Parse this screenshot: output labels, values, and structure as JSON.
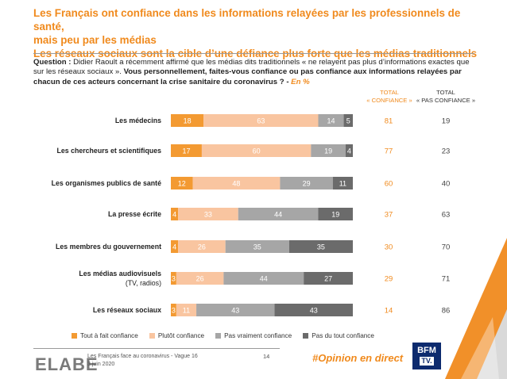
{
  "header": {
    "title_line1": "Les Français ont confiance dans les informations relayées par les professionnels de santé,",
    "title_line2": "mais peu par les médias",
    "title_line3": "Les réseaux sociaux sont la cible d’une défiance plus forte que les médias traditionnels"
  },
  "question": {
    "label": "Question :",
    "text1": " Didier Raoult a récemment affirmé que les médias dits traditionnels « ne relayent pas plus d’informations exactes que sur les réseaux sociaux ». ",
    "text2": "Vous personnellement, faites-vous confiance ou pas confiance aux informations relayées par chacun de ces acteurs concernant la crise sanitaire du coronavirus ? -",
    "pct": " En %"
  },
  "columns": {
    "confiance_l1": "TOTAL",
    "confiance_l2": "« CONFIANCE »",
    "pas_confiance_l1": "TOTAL",
    "pas_confiance_l2": "« PAS CONFIANCE »"
  },
  "colors": {
    "tout_a_fait": "#f39a32",
    "plutot": "#f9c5a0",
    "pas_vraiment": "#a6a6a6",
    "pas_du_tout": "#6b6b6b",
    "accent": "#f08a1d"
  },
  "chart_data": {
    "type": "bar",
    "orientation": "horizontal",
    "stacked": true,
    "categories": [
      [
        "Les médecins"
      ],
      [
        "Les chercheurs et scientifiques"
      ],
      [
        "Les organismes publics de santé"
      ],
      [
        "La presse écrite"
      ],
      [
        "Les membres du gouvernement"
      ],
      [
        "Les médias audiovisuels",
        "(TV, radios)"
      ],
      [
        "Les réseaux sociaux"
      ]
    ],
    "series": [
      {
        "name": "Tout à fait confiance",
        "values": [
          18,
          17,
          12,
          4,
          4,
          3,
          3
        ]
      },
      {
        "name": "Plutôt confiance",
        "values": [
          63,
          60,
          48,
          33,
          26,
          26,
          11
        ]
      },
      {
        "name": "Pas vraiment confiance",
        "values": [
          14,
          19,
          29,
          44,
          35,
          44,
          43
        ]
      },
      {
        "name": "Pas du tout confiance",
        "values": [
          5,
          4,
          11,
          19,
          35,
          27,
          43
        ]
      }
    ],
    "total_confiance": [
      81,
      77,
      60,
      37,
      30,
      29,
      14
    ],
    "total_pas_confiance": [
      19,
      23,
      40,
      63,
      70,
      71,
      86
    ],
    "legend_position": "bottom"
  },
  "footer": {
    "source_line1": "Les Français face au coronavirus - Vague 16",
    "source_line2": "3 juin 2020",
    "page": "14",
    "hashtag": "#Opinion en direct",
    "logo_main": "ELABE",
    "bfm": "BFM",
    "tv": "TV."
  }
}
